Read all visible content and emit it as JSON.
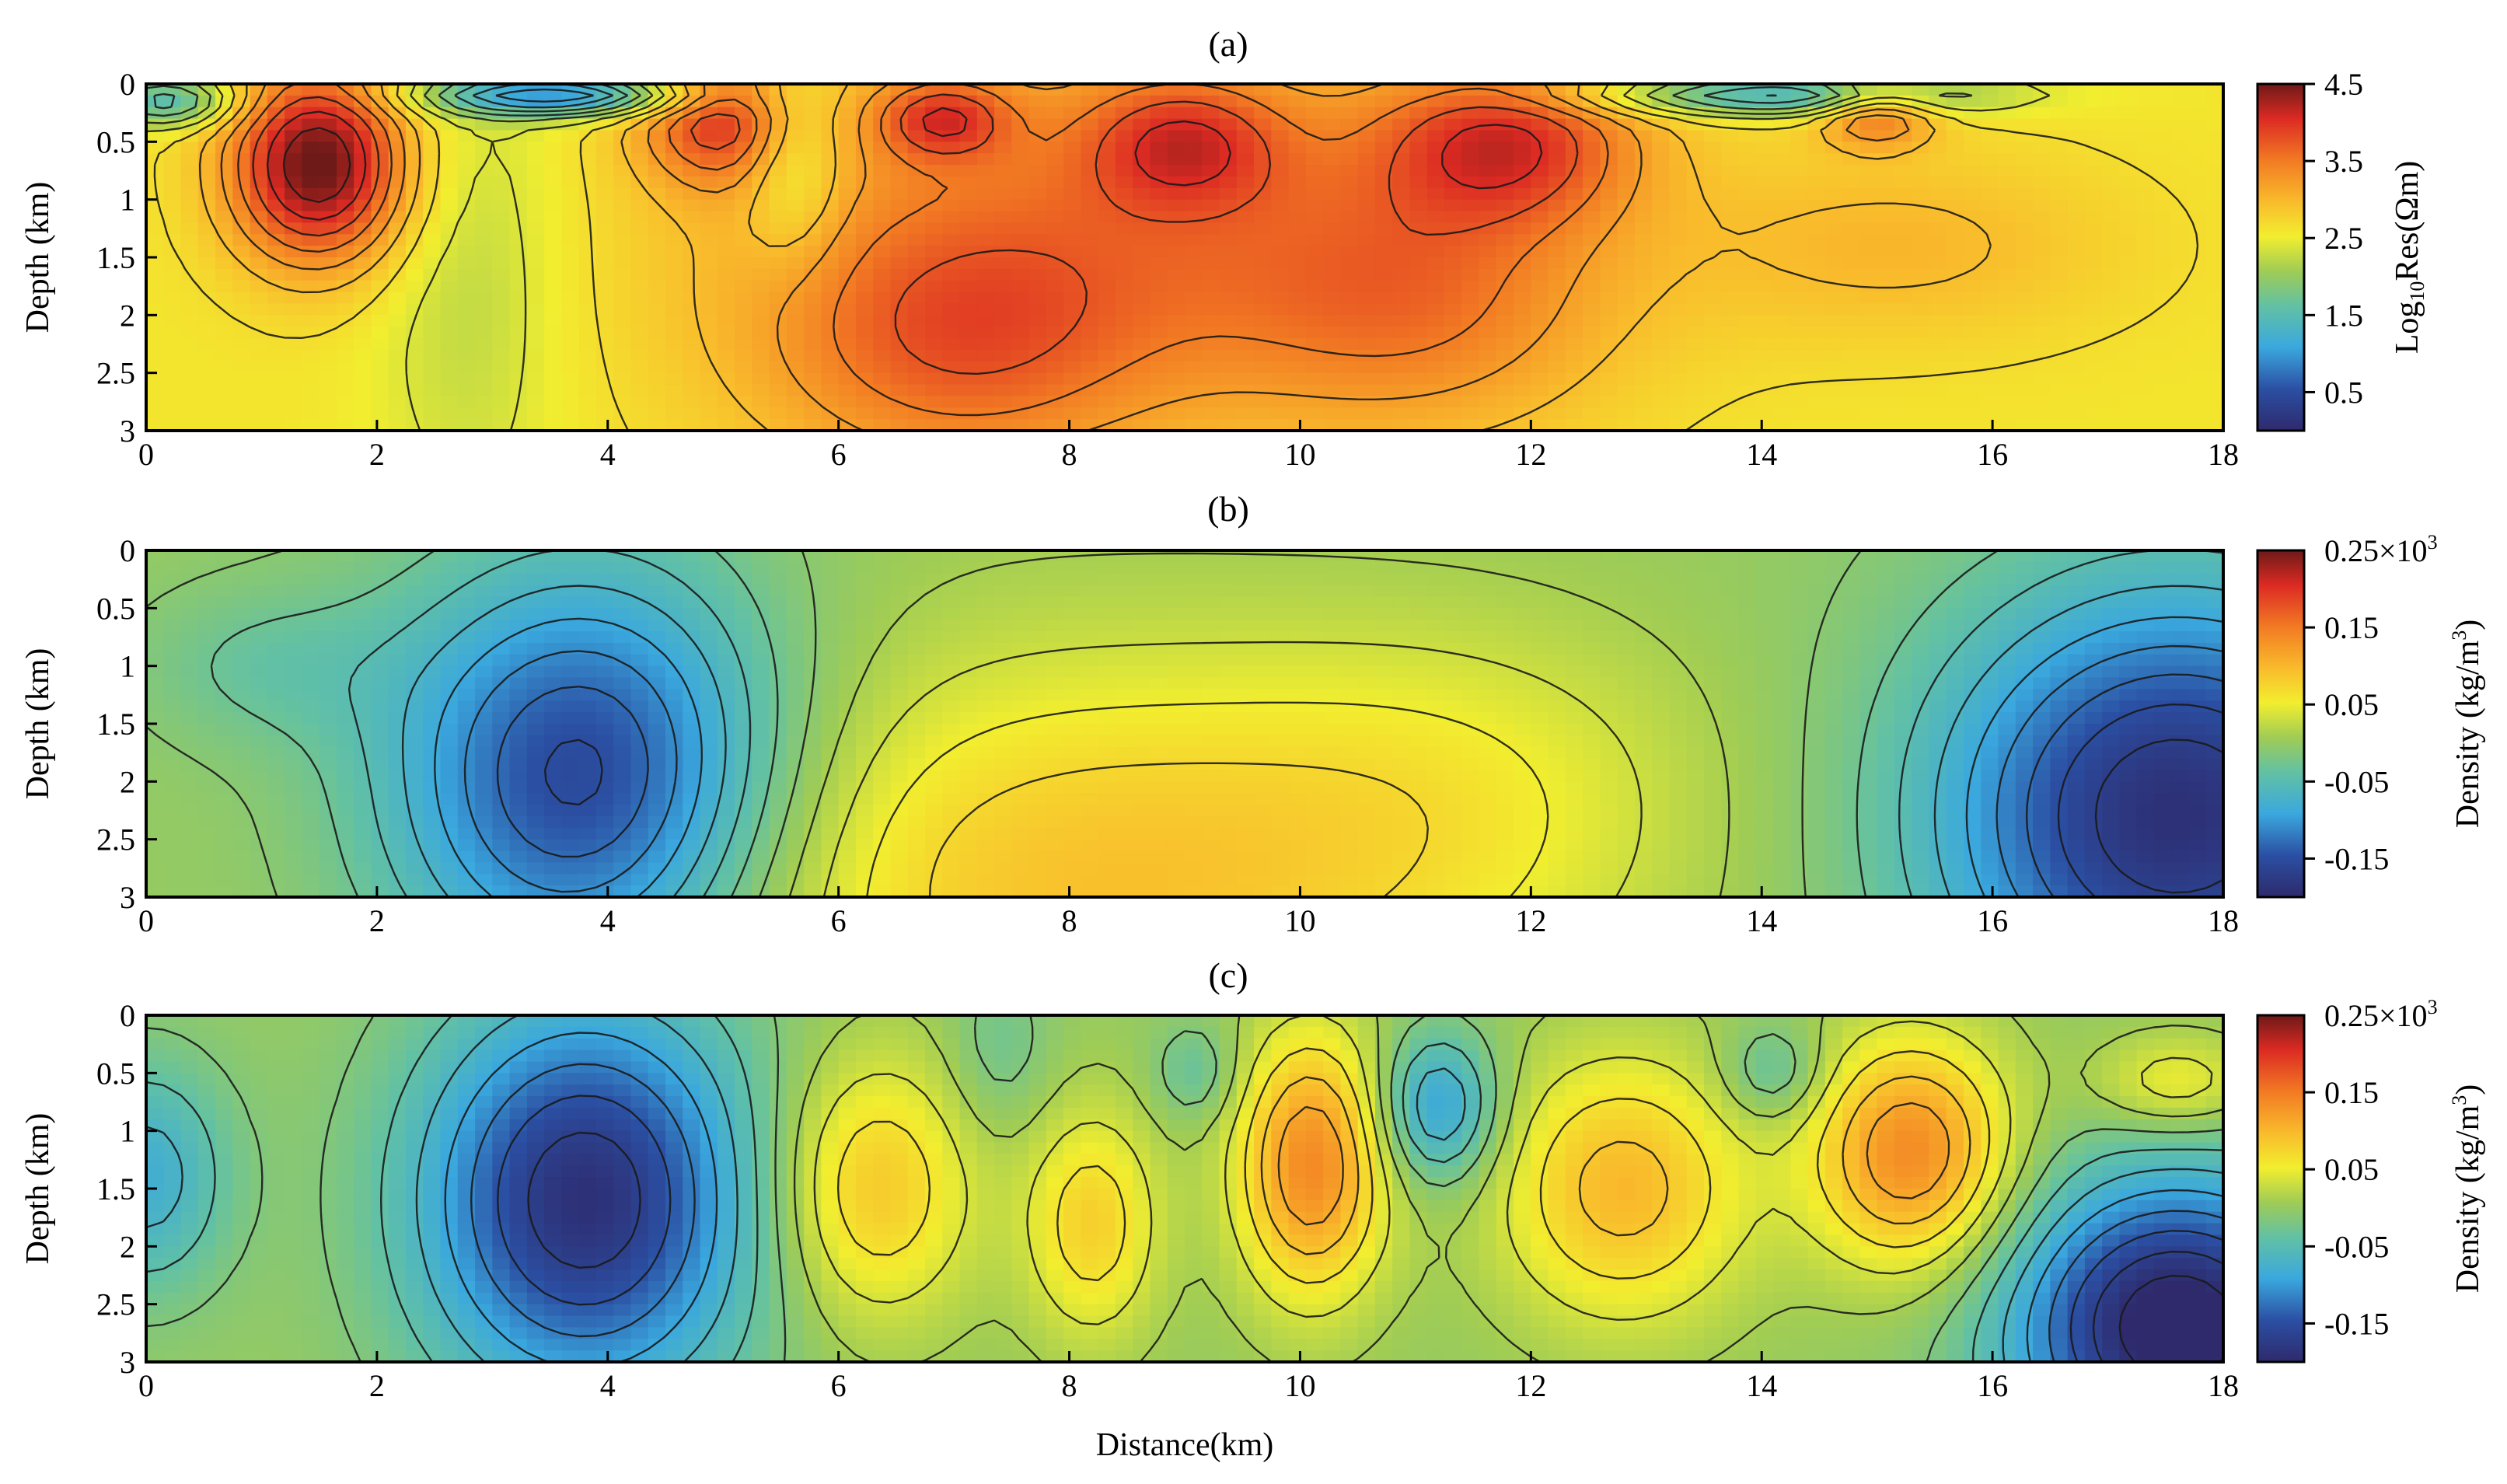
{
  "figure": {
    "x_axis_title": "Distance(km)"
  },
  "chart_data": [
    {
      "type": "heatmap",
      "panel_label": "(a)",
      "ylabel": "Depth (km)",
      "xlabel": "",
      "x_ticks": [
        "0",
        "2",
        "4",
        "6",
        "8",
        "10",
        "12",
        "14",
        "16",
        "18"
      ],
      "y_ticks": [
        "0",
        "0.5",
        "1",
        "1.5",
        "2",
        "2.5",
        "3"
      ],
      "xlim": [
        0,
        18
      ],
      "ylim": [
        3,
        0
      ],
      "colorbar": {
        "title": "Log10Res(Ωm)",
        "title_main": "Log",
        "title_sub": "10",
        "title_rest": "Res(Ωm)",
        "ticks": [
          "4.5",
          "3.5",
          "2.5",
          "1.5",
          "0.5"
        ],
        "range": [
          0,
          4.5
        ]
      },
      "field": {
        "background": 2.6,
        "anomalies": [
          {
            "x": 1.5,
            "depth": 0.7,
            "sx": 0.55,
            "sz": 0.6,
            "amp": 2.0
          },
          {
            "x": 3.6,
            "depth": 0.1,
            "sx": 0.8,
            "sz": 0.12,
            "amp": -1.8
          },
          {
            "x": 0.2,
            "depth": 0.15,
            "sx": 0.4,
            "sz": 0.15,
            "amp": -1.2
          },
          {
            "x": 5.0,
            "depth": 0.3,
            "sx": 0.5,
            "sz": 0.4,
            "amp": 1.2
          },
          {
            "x": 7.0,
            "depth": 2.3,
            "sx": 1.2,
            "sz": 0.8,
            "amp": 0.8
          },
          {
            "x": 6.9,
            "depth": 0.3,
            "sx": 0.4,
            "sz": 0.25,
            "amp": 1.0
          },
          {
            "x": 9.0,
            "depth": 0.5,
            "sx": 0.6,
            "sz": 0.4,
            "amp": 0.9
          },
          {
            "x": 8.3,
            "depth": 1.2,
            "sx": 2.4,
            "sz": 1.2,
            "amp": 0.8
          },
          {
            "x": 11.8,
            "depth": 0.5,
            "sx": 0.8,
            "sz": 0.5,
            "amp": 1.2
          },
          {
            "x": 11.0,
            "depth": 1.9,
            "sx": 1.2,
            "sz": 0.8,
            "amp": 0.7
          },
          {
            "x": 14.2,
            "depth": 0.1,
            "sx": 1.2,
            "sz": 0.12,
            "amp": -1.4
          },
          {
            "x": 15.0,
            "depth": 0.25,
            "sx": 0.35,
            "sz": 0.2,
            "amp": 1.0
          },
          {
            "x": 15.2,
            "depth": 1.4,
            "sx": 1.4,
            "sz": 0.6,
            "amp": 0.4
          },
          {
            "x": 2.8,
            "depth": 1.6,
            "sx": 0.6,
            "sz": 1.6,
            "amp": -0.4
          },
          {
            "x": 5.6,
            "depth": 0.6,
            "sx": 0.3,
            "sz": 0.6,
            "amp": -0.7
          }
        ]
      }
    },
    {
      "type": "heatmap",
      "panel_label": "(b)",
      "ylabel": "Depth (km)",
      "xlabel": "",
      "x_ticks": [
        "0",
        "2",
        "4",
        "6",
        "8",
        "10",
        "12",
        "14",
        "16",
        "18"
      ],
      "y_ticks": [
        "0",
        "0.5",
        "1",
        "1.5",
        "2",
        "2.5",
        "3"
      ],
      "xlim": [
        0,
        18
      ],
      "ylim": [
        3,
        0
      ],
      "colorbar": {
        "title": "Density (kg/m3)",
        "title_main": "Density (kg/m",
        "title_sup": "3",
        "title_rest": ")",
        "top_label": "0.25×10",
        "top_label_sup": "3",
        "ticks": [
          "0.15",
          "0.05",
          "-0.05",
          "-0.15"
        ],
        "range": [
          -0.2,
          0.25
        ]
      },
      "field": {
        "background": 0.0,
        "anomalies": [
          {
            "x": 3.8,
            "depth": 2.0,
            "sx": 1.2,
            "sz": 1.3,
            "amp": -0.17
          },
          {
            "x": 8.2,
            "depth": 2.9,
            "sx": 2.6,
            "sz": 1.4,
            "amp": 0.09
          },
          {
            "x": 17.6,
            "depth": 2.3,
            "sx": 1.5,
            "sz": 1.4,
            "amp": -0.19
          },
          {
            "x": 1.0,
            "depth": 1.0,
            "sx": 0.8,
            "sz": 0.5,
            "amp": -0.03
          },
          {
            "x": 11.5,
            "depth": 2.0,
            "sx": 1.5,
            "sz": 1.0,
            "amp": 0.03
          }
        ]
      }
    },
    {
      "type": "heatmap",
      "panel_label": "(c)",
      "ylabel": "Depth (km)",
      "xlabel": "Distance(km)",
      "x_ticks": [
        "0",
        "2",
        "4",
        "6",
        "8",
        "10",
        "12",
        "14",
        "16",
        "18"
      ],
      "y_ticks": [
        "0",
        "0.5",
        "1",
        "1.5",
        "2",
        "2.5",
        "3"
      ],
      "xlim": [
        0,
        18
      ],
      "ylim": [
        3,
        0
      ],
      "colorbar": {
        "title": "Density (kg/m3)",
        "title_main": "Density (kg/m",
        "title_sup": "3",
        "title_rest": ")",
        "top_label": "0.25×10",
        "top_label_sup": "3",
        "ticks": [
          "0.15",
          "0.05",
          "-0.05",
          "-0.15"
        ],
        "range": [
          -0.2,
          0.25
        ]
      },
      "field": {
        "background": 0.0,
        "anomalies": [
          {
            "x": 3.8,
            "depth": 1.6,
            "sx": 1.0,
            "sz": 1.2,
            "amp": -0.19
          },
          {
            "x": 0.0,
            "depth": 1.4,
            "sx": 0.5,
            "sz": 0.7,
            "amp": -0.08
          },
          {
            "x": 6.3,
            "depth": 1.5,
            "sx": 0.6,
            "sz": 0.8,
            "amp": 0.09
          },
          {
            "x": 8.2,
            "depth": 1.8,
            "sx": 0.4,
            "sz": 0.7,
            "amp": 0.08
          },
          {
            "x": 10.1,
            "depth": 1.3,
            "sx": 0.45,
            "sz": 0.8,
            "amp": 0.14
          },
          {
            "x": 11.2,
            "depth": 0.8,
            "sx": 0.35,
            "sz": 0.45,
            "amp": -0.1
          },
          {
            "x": 12.8,
            "depth": 1.5,
            "sx": 0.75,
            "sz": 0.8,
            "amp": 0.1
          },
          {
            "x": 14.1,
            "depth": 0.5,
            "sx": 0.3,
            "sz": 0.3,
            "amp": -0.05
          },
          {
            "x": 15.3,
            "depth": 1.2,
            "sx": 0.6,
            "sz": 0.7,
            "amp": 0.14
          },
          {
            "x": 17.6,
            "depth": 2.7,
            "sx": 1.0,
            "sz": 0.9,
            "amp": -0.22
          },
          {
            "x": 17.6,
            "depth": 0.6,
            "sx": 0.5,
            "sz": 0.3,
            "amp": 0.06
          },
          {
            "x": 9.1,
            "depth": 0.5,
            "sx": 0.25,
            "sz": 0.3,
            "amp": -0.04
          },
          {
            "x": 7.4,
            "depth": 0.3,
            "sx": 0.3,
            "sz": 0.5,
            "amp": -0.03
          }
        ]
      }
    }
  ]
}
